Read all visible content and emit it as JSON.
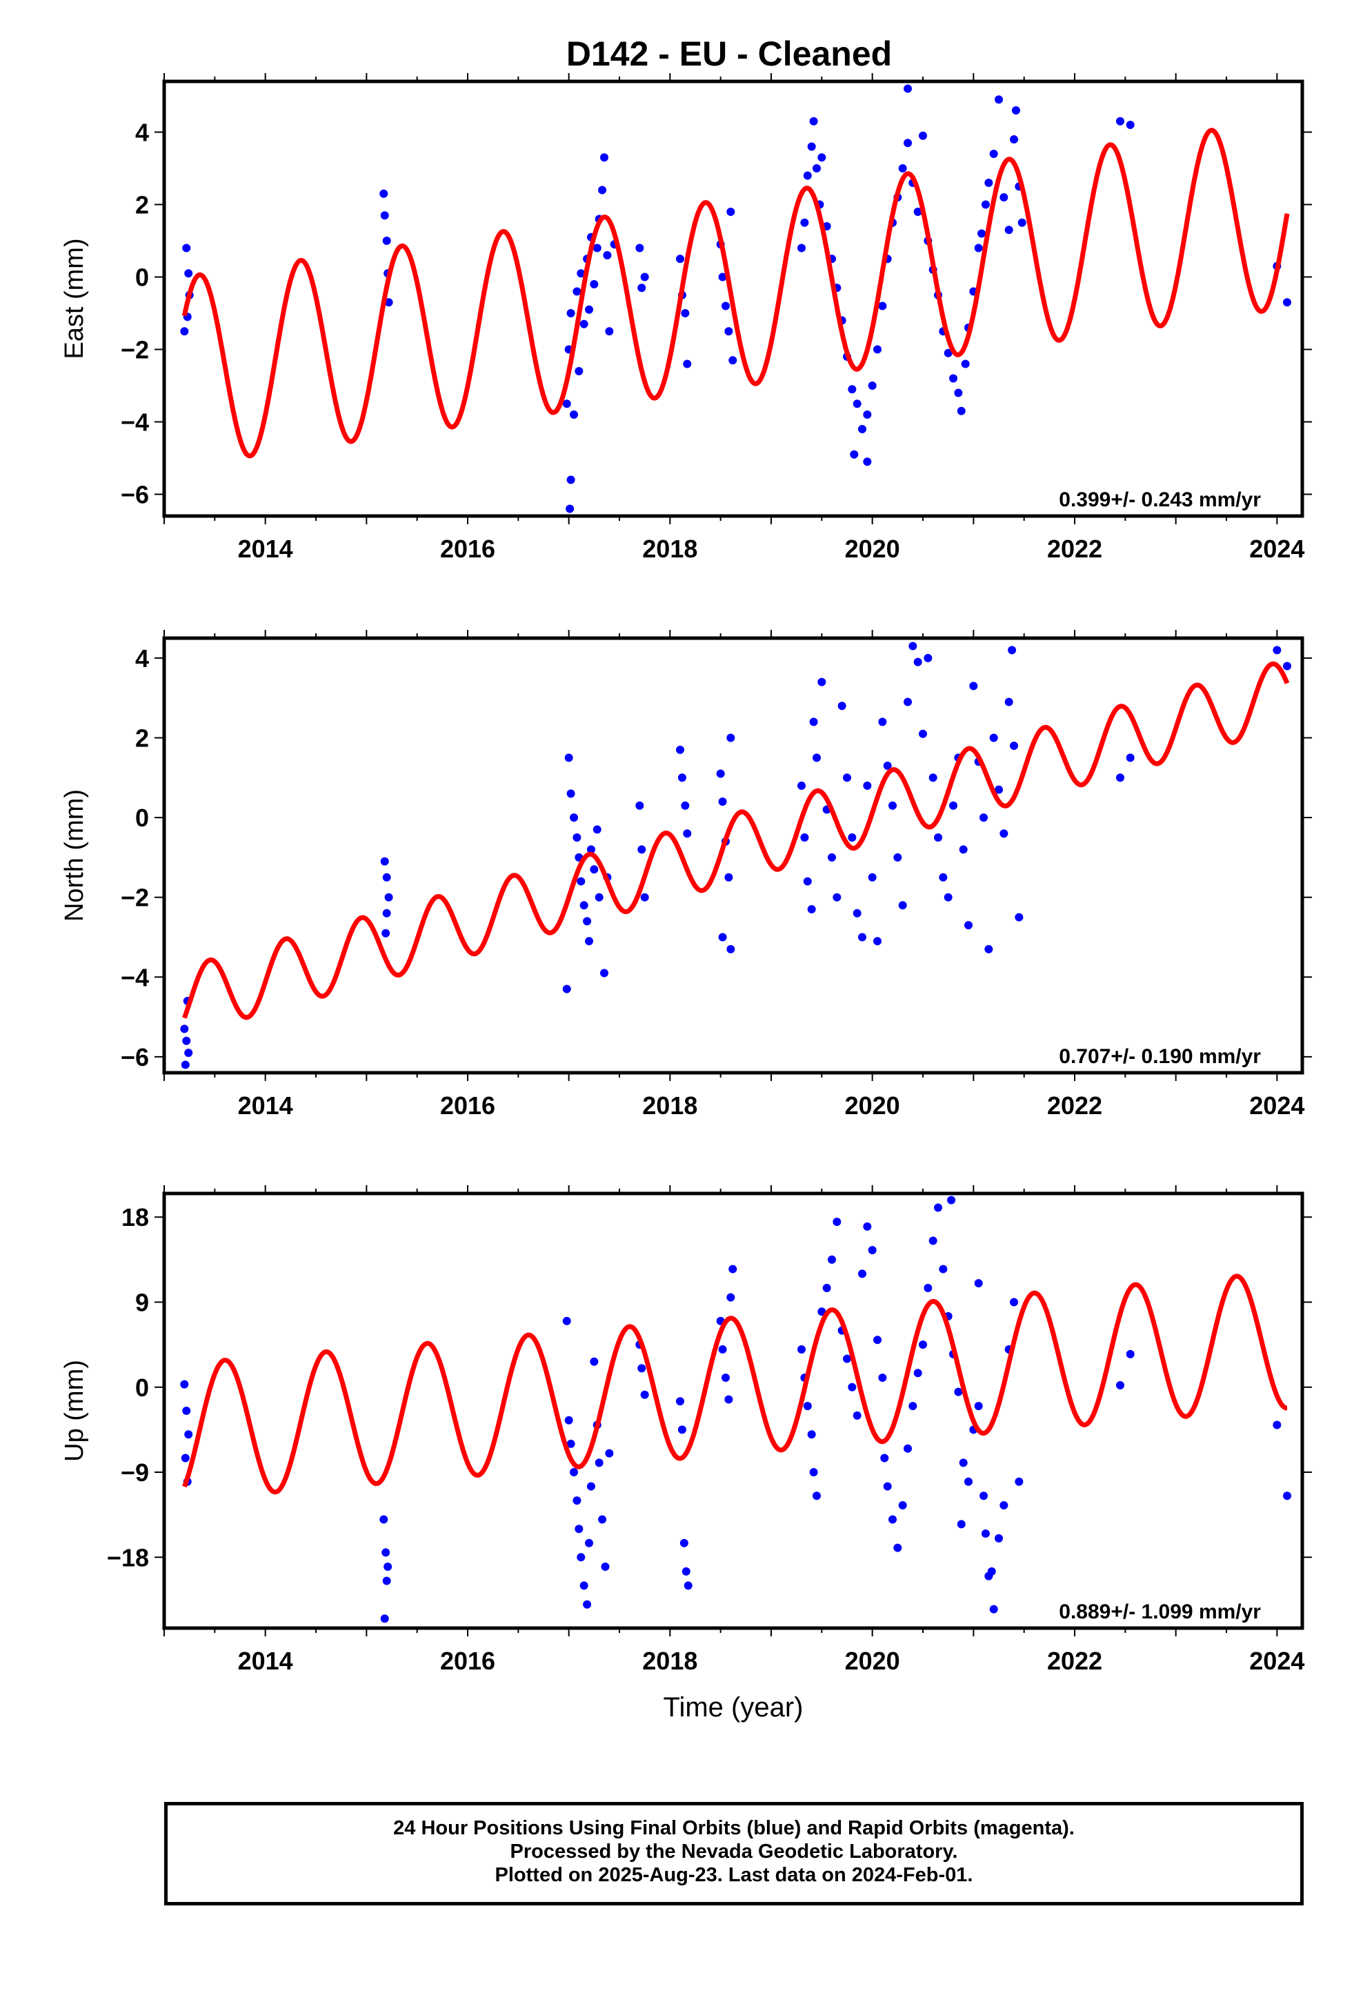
{
  "title": "D142  - EU - Cleaned",
  "footer": {
    "line1": "24 Hour Positions Using Final Orbits (blue) and Rapid Orbits (magenta).",
    "line2": "Processed by the Nevada Geodetic Laboratory.",
    "line3": "Plotted on 2025-Aug-23. Last data on 2024-Feb-01."
  },
  "colors": {
    "points": "#0000ff",
    "model": "#ff0000",
    "axes": "#000000"
  },
  "chart_data": [
    {
      "type": "scatter",
      "ylabel": "East (mm)",
      "xlabel": "",
      "xlim": [
        2013.0,
        2024.25
      ],
      "ylim": [
        -6.6,
        5.4
      ],
      "xticks": [
        2014,
        2016,
        2018,
        2020,
        2022,
        2024
      ],
      "yticks": [
        -6,
        -4,
        -2,
        0,
        2,
        4
      ],
      "rate": "0.399+/- 0.243 mm/yr",
      "model": {
        "name": "",
        "start": 2013.2,
        "end": 2024.1,
        "offset_at_start": -2.6,
        "slope": 0.399,
        "amplitude": 2.6,
        "phase_peak": 2013.35,
        "period": 1.0
      },
      "points": [
        [
          2013.2,
          -1.5
        ],
        [
          2013.22,
          0.8
        ],
        [
          2013.24,
          0.1
        ],
        [
          2013.25,
          -0.5
        ],
        [
          2013.23,
          -1.1
        ],
        [
          2015.17,
          2.3
        ],
        [
          2015.18,
          1.7
        ],
        [
          2015.2,
          1.0
        ],
        [
          2015.21,
          0.1
        ],
        [
          2015.22,
          -0.7
        ],
        [
          2016.98,
          -3.5
        ],
        [
          2017.0,
          -2.0
        ],
        [
          2017.02,
          -1.0
        ],
        [
          2017.05,
          -3.8
        ],
        [
          2017.08,
          -0.4
        ],
        [
          2017.1,
          -2.6
        ],
        [
          2017.12,
          0.1
        ],
        [
          2017.15,
          -1.3
        ],
        [
          2017.18,
          0.5
        ],
        [
          2017.2,
          -0.9
        ],
        [
          2017.22,
          1.1
        ],
        [
          2017.25,
          -0.2
        ],
        [
          2017.28,
          0.8
        ],
        [
          2017.3,
          1.6
        ],
        [
          2017.33,
          2.4
        ],
        [
          2017.35,
          3.3
        ],
        [
          2017.38,
          0.6
        ],
        [
          2017.4,
          -1.5
        ],
        [
          2017.02,
          -5.6
        ],
        [
          2017.01,
          -6.4
        ],
        [
          2017.45,
          0.9
        ],
        [
          2017.7,
          0.8
        ],
        [
          2017.72,
          -0.3
        ],
        [
          2017.75,
          0.0
        ],
        [
          2018.1,
          0.5
        ],
        [
          2018.12,
          -0.5
        ],
        [
          2018.15,
          -1.0
        ],
        [
          2018.17,
          -2.4
        ],
        [
          2018.5,
          0.9
        ],
        [
          2018.52,
          0.0
        ],
        [
          2018.55,
          -0.8
        ],
        [
          2018.58,
          -1.5
        ],
        [
          2018.6,
          1.8
        ],
        [
          2018.62,
          -2.3
        ],
        [
          2019.3,
          0.8
        ],
        [
          2019.33,
          1.5
        ],
        [
          2019.36,
          2.8
        ],
        [
          2019.4,
          3.6
        ],
        [
          2019.42,
          4.3
        ],
        [
          2019.45,
          3.0
        ],
        [
          2019.48,
          2.0
        ],
        [
          2019.5,
          3.3
        ],
        [
          2019.55,
          1.4
        ],
        [
          2019.6,
          0.5
        ],
        [
          2019.65,
          -0.3
        ],
        [
          2019.7,
          -1.2
        ],
        [
          2019.75,
          -2.2
        ],
        [
          2019.8,
          -3.1
        ],
        [
          2019.85,
          -3.5
        ],
        [
          2019.9,
          -4.2
        ],
        [
          2019.95,
          -3.8
        ],
        [
          2020.0,
          -3.0
        ],
        [
          2019.82,
          -4.9
        ],
        [
          2019.95,
          -5.1
        ],
        [
          2020.05,
          -2.0
        ],
        [
          2020.1,
          -0.8
        ],
        [
          2020.15,
          0.5
        ],
        [
          2020.2,
          1.5
        ],
        [
          2020.25,
          2.2
        ],
        [
          2020.3,
          3.0
        ],
        [
          2020.35,
          3.7
        ],
        [
          2020.4,
          2.6
        ],
        [
          2020.45,
          1.8
        ],
        [
          2020.5,
          3.9
        ],
        [
          2020.55,
          1.0
        ],
        [
          2020.6,
          0.2
        ],
        [
          2020.65,
          -0.5
        ],
        [
          2020.7,
          -1.5
        ],
        [
          2020.75,
          -2.1
        ],
        [
          2020.8,
          -2.8
        ],
        [
          2020.85,
          -3.2
        ],
        [
          2020.88,
          -3.7
        ],
        [
          2020.92,
          -2.4
        ],
        [
          2020.95,
          -1.4
        ],
        [
          2021.0,
          -0.4
        ],
        [
          2021.05,
          0.8
        ],
        [
          2021.08,
          1.2
        ],
        [
          2021.12,
          2.0
        ],
        [
          2021.15,
          2.6
        ],
        [
          2021.2,
          3.4
        ],
        [
          2021.25,
          4.9
        ],
        [
          2021.3,
          2.2
        ],
        [
          2021.35,
          1.3
        ],
        [
          2021.4,
          3.8
        ],
        [
          2021.42,
          4.6
        ],
        [
          2021.45,
          2.5
        ],
        [
          2021.48,
          1.5
        ],
        [
          2020.35,
          5.2
        ],
        [
          2022.45,
          4.3
        ],
        [
          2022.55,
          4.2
        ],
        [
          2024.0,
          0.3
        ],
        [
          2024.1,
          -0.7
        ]
      ]
    },
    {
      "type": "scatter",
      "ylabel": "North (mm)",
      "xlabel": "",
      "xlim": [
        2013.0,
        2024.25
      ],
      "ylim": [
        -6.4,
        4.5
      ],
      "xticks": [
        2014,
        2016,
        2018,
        2020,
        2022,
        2024
      ],
      "yticks": [
        -6,
        -4,
        -2,
        0,
        2,
        4
      ],
      "rate": "0.707+/- 0.190 mm/yr",
      "model": {
        "name": "",
        "start": 2013.2,
        "end": 2024.1,
        "offset_at_start": -4.6,
        "slope": 0.707,
        "amplitude": 0.85,
        "phase_peak": 2013.45,
        "period": 0.75
      },
      "points": [
        [
          2013.2,
          -5.3
        ],
        [
          2013.22,
          -5.6
        ],
        [
          2013.24,
          -5.9
        ],
        [
          2013.21,
          -6.2
        ],
        [
          2013.23,
          -4.6
        ],
        [
          2015.18,
          -1.1
        ],
        [
          2015.2,
          -1.5
        ],
        [
          2015.22,
          -2.0
        ],
        [
          2015.2,
          -2.4
        ],
        [
          2015.19,
          -2.9
        ],
        [
          2016.98,
          -4.3
        ],
        [
          2017.0,
          1.5
        ],
        [
          2017.02,
          0.6
        ],
        [
          2017.05,
          0.0
        ],
        [
          2017.08,
          -0.5
        ],
        [
          2017.1,
          -1.0
        ],
        [
          2017.12,
          -1.6
        ],
        [
          2017.15,
          -2.2
        ],
        [
          2017.18,
          -2.6
        ],
        [
          2017.2,
          -3.1
        ],
        [
          2017.22,
          -0.8
        ],
        [
          2017.25,
          -1.3
        ],
        [
          2017.28,
          -0.3
        ],
        [
          2017.3,
          -2.0
        ],
        [
          2017.35,
          -3.9
        ],
        [
          2017.38,
          -1.5
        ],
        [
          2017.7,
          0.3
        ],
        [
          2017.72,
          -0.8
        ],
        [
          2017.75,
          -2.0
        ],
        [
          2018.1,
          1.7
        ],
        [
          2018.12,
          1.0
        ],
        [
          2018.15,
          0.3
        ],
        [
          2018.17,
          -0.4
        ],
        [
          2018.5,
          1.1
        ],
        [
          2018.52,
          0.4
        ],
        [
          2018.55,
          -0.6
        ],
        [
          2018.58,
          -1.5
        ],
        [
          2018.6,
          2.0
        ],
        [
          2018.52,
          -3.0
        ],
        [
          2018.6,
          -3.3
        ],
        [
          2019.3,
          0.8
        ],
        [
          2019.33,
          -0.5
        ],
        [
          2019.36,
          -1.6
        ],
        [
          2019.4,
          -2.3
        ],
        [
          2019.42,
          2.4
        ],
        [
          2019.45,
          1.5
        ],
        [
          2019.5,
          3.4
        ],
        [
          2019.55,
          0.2
        ],
        [
          2019.6,
          -1.0
        ],
        [
          2019.65,
          -2.0
        ],
        [
          2019.7,
          2.8
        ],
        [
          2019.75,
          1.0
        ],
        [
          2019.8,
          -0.5
        ],
        [
          2019.85,
          -2.4
        ],
        [
          2019.9,
          -3.0
        ],
        [
          2019.95,
          0.8
        ],
        [
          2020.0,
          -1.5
        ],
        [
          2020.05,
          -3.1
        ],
        [
          2020.1,
          2.4
        ],
        [
          2020.15,
          1.3
        ],
        [
          2020.2,
          0.3
        ],
        [
          2020.25,
          -1.0
        ],
        [
          2020.3,
          -2.2
        ],
        [
          2020.35,
          2.9
        ],
        [
          2020.4,
          4.3
        ],
        [
          2020.45,
          3.9
        ],
        [
          2020.5,
          2.1
        ],
        [
          2020.55,
          4.0
        ],
        [
          2020.6,
          1.0
        ],
        [
          2020.65,
          -0.5
        ],
        [
          2020.7,
          -1.5
        ],
        [
          2020.75,
          -2.0
        ],
        [
          2020.8,
          0.3
        ],
        [
          2020.85,
          1.5
        ],
        [
          2020.9,
          -0.8
        ],
        [
          2020.95,
          -2.7
        ],
        [
          2021.0,
          3.3
        ],
        [
          2021.05,
          1.4
        ],
        [
          2021.1,
          0.0
        ],
        [
          2021.15,
          -3.3
        ],
        [
          2021.2,
          2.0
        ],
        [
          2021.25,
          0.7
        ],
        [
          2021.3,
          -0.4
        ],
        [
          2021.35,
          2.9
        ],
        [
          2021.38,
          4.2
        ],
        [
          2021.4,
          1.8
        ],
        [
          2021.45,
          -2.5
        ],
        [
          2022.45,
          1.0
        ],
        [
          2022.55,
          1.5
        ],
        [
          2024.0,
          4.2
        ],
        [
          2024.1,
          3.8
        ]
      ]
    },
    {
      "type": "scatter",
      "ylabel": "Up (mm)",
      "xlabel": "Time (year)",
      "xlim": [
        2013.0,
        2024.25
      ],
      "ylim": [
        -25.5,
        20.5
      ],
      "xticks": [
        2014,
        2016,
        2018,
        2020,
        2022,
        2024
      ],
      "yticks": [
        -18,
        -9,
        0,
        9,
        18
      ],
      "rate": "0.889+/- 1.099 mm/yr",
      "model": {
        "name": "",
        "start": 2013.2,
        "end": 2024.1,
        "offset_at_start": -4.7,
        "slope": 0.889,
        "amplitude": 7.2,
        "phase_peak": 2013.6,
        "period": 1.0
      },
      "points": [
        [
          2013.2,
          0.3
        ],
        [
          2013.22,
          -2.5
        ],
        [
          2013.24,
          -5.0
        ],
        [
          2013.21,
          -7.5
        ],
        [
          2013.23,
          -10.0
        ],
        [
          2015.17,
          -14.0
        ],
        [
          2015.19,
          -17.5
        ],
        [
          2015.21,
          -19.0
        ],
        [
          2015.2,
          -20.5
        ],
        [
          2015.18,
          -24.5
        ],
        [
          2016.98,
          7.0
        ],
        [
          2017.0,
          -3.5
        ],
        [
          2017.02,
          -6.0
        ],
        [
          2017.05,
          -9.0
        ],
        [
          2017.08,
          -12.0
        ],
        [
          2017.1,
          -15.0
        ],
        [
          2017.12,
          -18.0
        ],
        [
          2017.15,
          -21.0
        ],
        [
          2017.18,
          -23.0
        ],
        [
          2017.2,
          -16.5
        ],
        [
          2017.22,
          -10.5
        ],
        [
          2017.25,
          2.7
        ],
        [
          2017.28,
          -4.0
        ],
        [
          2017.3,
          -8.0
        ],
        [
          2017.33,
          -14.0
        ],
        [
          2017.36,
          -19.0
        ],
        [
          2017.4,
          -7.0
        ],
        [
          2017.7,
          4.5
        ],
        [
          2017.72,
          2.0
        ],
        [
          2017.75,
          -0.8
        ],
        [
          2018.1,
          -1.5
        ],
        [
          2018.12,
          -4.5
        ],
        [
          2018.14,
          -16.5
        ],
        [
          2018.16,
          -19.5
        ],
        [
          2018.18,
          -21.0
        ],
        [
          2018.5,
          7.0
        ],
        [
          2018.52,
          4.0
        ],
        [
          2018.55,
          1.0
        ],
        [
          2018.58,
          -1.3
        ],
        [
          2018.6,
          9.5
        ],
        [
          2018.62,
          12.5
        ],
        [
          2019.3,
          4.0
        ],
        [
          2019.33,
          1.0
        ],
        [
          2019.36,
          -2.0
        ],
        [
          2019.4,
          -5.0
        ],
        [
          2019.42,
          -9.0
        ],
        [
          2019.45,
          -11.5
        ],
        [
          2019.5,
          8.0
        ],
        [
          2019.55,
          10.5
        ],
        [
          2019.6,
          13.5
        ],
        [
          2019.65,
          17.5
        ],
        [
          2019.7,
          6.0
        ],
        [
          2019.75,
          3.0
        ],
        [
          2019.8,
          0.0
        ],
        [
          2019.85,
          -3.0
        ],
        [
          2019.9,
          12.0
        ],
        [
          2019.95,
          17.0
        ],
        [
          2020.0,
          14.5
        ],
        [
          2020.05,
          5.0
        ],
        [
          2020.1,
          1.0
        ],
        [
          2020.12,
          -7.5
        ],
        [
          2020.15,
          -10.5
        ],
        [
          2020.2,
          -14.0
        ],
        [
          2020.25,
          -17.0
        ],
        [
          2020.3,
          -12.5
        ],
        [
          2020.35,
          -6.5
        ],
        [
          2020.4,
          -2.0
        ],
        [
          2020.45,
          1.5
        ],
        [
          2020.5,
          4.5
        ],
        [
          2020.55,
          10.5
        ],
        [
          2020.6,
          15.5
        ],
        [
          2020.65,
          19.0
        ],
        [
          2020.7,
          12.5
        ],
        [
          2020.75,
          7.5
        ],
        [
          2020.78,
          19.8
        ],
        [
          2020.8,
          3.5
        ],
        [
          2020.85,
          -0.5
        ],
        [
          2020.88,
          -14.5
        ],
        [
          2020.9,
          -8.0
        ],
        [
          2020.95,
          -10.0
        ],
        [
          2021.0,
          -4.5
        ],
        [
          2021.05,
          -2.0
        ],
        [
          2021.1,
          -11.5
        ],
        [
          2021.12,
          -15.5
        ],
        [
          2021.15,
          -20.0
        ],
        [
          2021.18,
          -19.5
        ],
        [
          2021.2,
          -23.5
        ],
        [
          2021.25,
          -16.0
        ],
        [
          2021.3,
          -12.5
        ],
        [
          2021.35,
          4.0
        ],
        [
          2021.4,
          9.0
        ],
        [
          2021.45,
          -10.0
        ],
        [
          2021.05,
          11.0
        ],
        [
          2022.45,
          0.2
        ],
        [
          2022.55,
          3.5
        ],
        [
          2024.0,
          -4.0
        ],
        [
          2024.1,
          -11.5
        ]
      ]
    }
  ]
}
